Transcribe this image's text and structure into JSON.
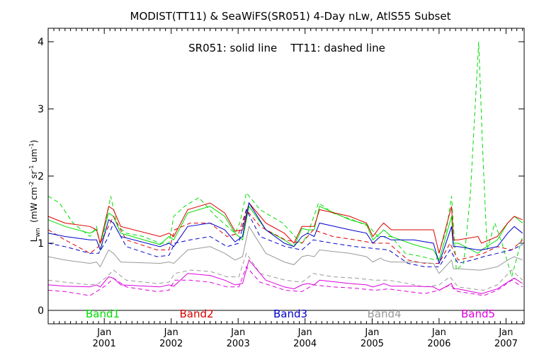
{
  "chart_data": {
    "type": "line",
    "title": "MODIST(TT11) & SeaWiFS(SR051) 4-Day nLw, AtlS55 Subset",
    "annotation": "SR051: solid line    TT11: dashed line",
    "xlabel": "",
    "ylabel": {
      "base": "L",
      "sub": "wn",
      "rest_1": "  (mW cm",
      "sup_1": "-2",
      "rest_2": " sr",
      "sup_2": "-1",
      "rest_3": " um",
      "sup_3": "-1",
      "rest_4": ")"
    },
    "x_axis": {
      "type": "date",
      "range": [
        "2000-03-01",
        "2007-04-10"
      ],
      "tick_month": "Jan",
      "tick_dates": [
        "2001-01-01",
        "2002-01-01",
        "2003-01-01",
        "2004-01-01",
        "2005-01-01",
        "2006-01-01",
        "2007-01-01"
      ],
      "tick_labels": [
        "2001",
        "2002",
        "2003",
        "2004",
        "2005",
        "2006",
        "2007"
      ]
    },
    "ylim": [
      -0.2,
      4.2
    ],
    "yticks": [
      0,
      1,
      2,
      3,
      4
    ],
    "grid": false,
    "zero_line": true,
    "legend": {
      "placement": "bottom-inside",
      "entries": [
        {
          "label": "Band1",
          "color": "#00dd00"
        },
        {
          "label": "Band2",
          "color": "#dd0000"
        },
        {
          "label": "Band3",
          "color": "#0000cc"
        },
        {
          "label": "Band4",
          "color": "#999999"
        },
        {
          "label": "Band5",
          "color": "#dd00dd"
        }
      ]
    },
    "series": [
      {
        "band": "Band1",
        "sensor": "SR051",
        "style": "solid",
        "color": "#00dd00",
        "x": [
          "2000-03-01",
          "2000-06-01",
          "2000-10-15",
          "2000-11-20",
          "2000-12-10",
          "2001-01-25",
          "2001-02-20",
          "2001-04-01",
          "2001-11-01",
          "2001-12-20",
          "2002-01-15",
          "2002-04-01",
          "2002-08-01",
          "2002-10-20",
          "2002-12-15",
          "2003-01-25",
          "2003-03-01",
          "2003-06-01",
          "2003-09-10",
          "2003-11-01",
          "2003-12-15",
          "2004-01-15",
          "2004-02-20",
          "2004-03-20",
          "2004-09-01",
          "2004-12-01",
          "2005-01-05",
          "2005-02-15",
          "2005-03-05",
          "2005-04-15",
          "2005-08-15",
          "2005-12-01",
          "2006-01-01",
          "2006-03-10",
          "2006-03-20",
          "2006-04-15",
          "2006-08-01",
          "2006-08-20",
          "2006-11-15",
          "2007-01-10",
          "2007-02-15",
          "2007-04-01"
        ],
        "y": [
          1.35,
          1.25,
          1.15,
          1.2,
          1.0,
          1.45,
          1.4,
          1.15,
          0.98,
          1.1,
          1.05,
          1.45,
          1.55,
          1.4,
          1.15,
          1.05,
          1.55,
          1.2,
          1.05,
          0.95,
          1.22,
          1.2,
          1.2,
          1.55,
          1.35,
          1.28,
          1.05,
          1.15,
          1.2,
          1.1,
          0.98,
          0.9,
          0.75,
          1.4,
          1.0,
          1.0,
          0.85,
          0.9,
          1.05,
          1.3,
          1.4,
          1.3
        ]
      },
      {
        "band": "Band1",
        "sensor": "TT11",
        "style": "dashed",
        "color": "#00dd00",
        "x": [
          "2000-03-01",
          "2000-05-01",
          "2000-07-15",
          "2000-10-15",
          "2000-11-20",
          "2000-12-15",
          "2001-01-05",
          "2001-02-05",
          "2001-03-15",
          "2001-05-01",
          "2001-08-01",
          "2001-11-01",
          "2001-12-20",
          "2002-01-15",
          "2002-03-15",
          "2002-06-01",
          "2002-09-01",
          "2002-12-15",
          "2003-01-10",
          "2003-02-15",
          "2003-05-01",
          "2003-09-01",
          "2003-12-10",
          "2004-01-10",
          "2004-03-15",
          "2004-06-01",
          "2004-09-15",
          "2004-12-15",
          "2005-02-01",
          "2005-04-15",
          "2005-07-01",
          "2005-10-01",
          "2005-12-15",
          "2006-01-05",
          "2006-02-10",
          "2006-03-10",
          "2006-04-05",
          "2006-05-15",
          "2006-06-20",
          "2006-08-05",
          "2006-08-25",
          "2006-09-20",
          "2006-11-01",
          "2006-12-10",
          "2007-02-01",
          "2007-04-01"
        ],
        "y": [
          1.7,
          1.6,
          1.3,
          1.1,
          1.25,
          0.9,
          1.25,
          1.7,
          1.25,
          1.15,
          1.1,
          1.0,
          1.0,
          1.4,
          1.55,
          1.68,
          1.4,
          1.15,
          1.3,
          1.75,
          1.5,
          1.3,
          1.0,
          1.1,
          1.6,
          1.45,
          1.35,
          1.25,
          1.1,
          1.1,
          0.85,
          0.8,
          0.75,
          0.9,
          1.2,
          1.7,
          0.6,
          0.7,
          1.7,
          4.0,
          2.5,
          0.9,
          1.3,
          1.0,
          0.5,
          1.1
        ]
      },
      {
        "band": "Band2",
        "sensor": "SR051",
        "style": "solid",
        "color": "#dd0000",
        "x": [
          "2000-03-01",
          "2000-06-01",
          "2000-10-15",
          "2000-11-20",
          "2000-12-10",
          "2001-01-25",
          "2001-02-20",
          "2001-04-01",
          "2001-11-01",
          "2001-12-20",
          "2002-01-15",
          "2002-04-01",
          "2002-08-01",
          "2002-10-20",
          "2002-12-15",
          "2003-01-25",
          "2003-03-01",
          "2003-06-01",
          "2003-09-10",
          "2003-11-01",
          "2003-12-15",
          "2004-01-15",
          "2004-02-20",
          "2004-03-20",
          "2004-09-01",
          "2004-12-01",
          "2005-01-05",
          "2005-02-15",
          "2005-03-05",
          "2005-04-15",
          "2005-08-15",
          "2005-12-01",
          "2006-01-01",
          "2006-03-10",
          "2006-03-20",
          "2006-04-15",
          "2006-08-01",
          "2006-08-20",
          "2006-11-15",
          "2007-01-10",
          "2007-02-15",
          "2007-04-01"
        ],
        "y": [
          1.4,
          1.3,
          1.25,
          1.2,
          1.0,
          1.55,
          1.5,
          1.25,
          1.1,
          1.15,
          1.1,
          1.5,
          1.6,
          1.45,
          1.18,
          1.2,
          1.6,
          1.3,
          1.15,
          1.0,
          1.25,
          1.25,
          1.25,
          1.5,
          1.4,
          1.3,
          1.1,
          1.25,
          1.3,
          1.2,
          1.2,
          1.2,
          0.85,
          1.55,
          1.05,
          1.05,
          1.1,
          1.0,
          1.1,
          1.3,
          1.4,
          1.35
        ]
      },
      {
        "band": "Band2",
        "sensor": "TT11",
        "style": "dashed",
        "color": "#dd0000",
        "x": [
          "2000-03-01",
          "2000-06-01",
          "2000-10-15",
          "2000-12-01",
          "2001-01-15",
          "2001-02-20",
          "2001-05-01",
          "2001-10-15",
          "2001-12-20",
          "2002-01-20",
          "2002-04-15",
          "2002-08-01",
          "2002-11-01",
          "2003-01-05",
          "2003-02-15",
          "2003-05-01",
          "2003-09-15",
          "2003-12-15",
          "2004-02-15",
          "2004-06-01",
          "2004-10-01",
          "2005-01-15",
          "2005-04-01",
          "2005-07-15",
          "2005-10-15",
          "2006-01-01",
          "2006-03-01",
          "2006-04-15",
          "2006-07-01",
          "2006-09-01",
          "2006-11-15",
          "2007-02-01",
          "2007-04-01"
        ],
        "y": [
          1.2,
          1.05,
          0.85,
          0.95,
          1.2,
          1.4,
          1.05,
          0.9,
          0.9,
          1.2,
          1.3,
          1.3,
          1.1,
          1.15,
          1.5,
          1.25,
          1.05,
          1.0,
          1.2,
          1.1,
          1.05,
          1.0,
          1.0,
          0.75,
          0.7,
          0.7,
          1.0,
          0.75,
          0.8,
          0.85,
          0.95,
          0.9,
          1.05
        ]
      },
      {
        "band": "Band3",
        "sensor": "SR051",
        "style": "solid",
        "color": "#0000cc",
        "x": [
          "2000-03-01",
          "2000-06-01",
          "2000-10-15",
          "2000-11-20",
          "2000-12-10",
          "2001-01-25",
          "2001-02-20",
          "2001-04-01",
          "2001-11-01",
          "2001-12-20",
          "2002-01-15",
          "2002-04-01",
          "2002-08-01",
          "2002-10-20",
          "2002-12-15",
          "2003-01-25",
          "2003-03-01",
          "2003-06-01",
          "2003-09-10",
          "2003-11-01",
          "2003-12-15",
          "2004-01-15",
          "2004-02-20",
          "2004-03-20",
          "2004-09-01",
          "2004-12-01",
          "2005-01-05",
          "2005-02-15",
          "2005-03-05",
          "2005-04-15",
          "2005-08-15",
          "2005-12-01",
          "2006-01-01",
          "2006-03-10",
          "2006-03-20",
          "2006-04-15",
          "2006-08-01",
          "2006-08-20",
          "2006-11-15",
          "2007-01-10",
          "2007-02-15",
          "2007-04-01"
        ],
        "y": [
          1.15,
          1.1,
          1.05,
          1.05,
          0.9,
          1.35,
          1.3,
          1.1,
          0.95,
          1.0,
          0.95,
          1.25,
          1.3,
          1.2,
          1.02,
          1.1,
          1.6,
          1.2,
          1.0,
          0.95,
          1.1,
          1.15,
          1.1,
          1.3,
          1.2,
          1.15,
          1.0,
          1.1,
          1.1,
          1.05,
          1.05,
          1.0,
          0.7,
          1.25,
          0.95,
          0.95,
          0.9,
          0.9,
          0.95,
          1.15,
          1.25,
          1.15
        ]
      },
      {
        "band": "Band3",
        "sensor": "TT11",
        "style": "dashed",
        "color": "#0000cc",
        "x": [
          "2000-03-01",
          "2000-06-01",
          "2000-10-15",
          "2000-12-01",
          "2001-01-15",
          "2001-02-20",
          "2001-05-01",
          "2001-10-15",
          "2001-12-20",
          "2002-01-20",
          "2002-04-15",
          "2002-08-01",
          "2002-11-01",
          "2003-01-05",
          "2003-02-15",
          "2003-05-01",
          "2003-09-15",
          "2003-12-15",
          "2004-02-15",
          "2004-06-01",
          "2004-10-01",
          "2005-01-15",
          "2005-04-01",
          "2005-07-15",
          "2005-10-15",
          "2006-01-01",
          "2006-03-01",
          "2006-04-15",
          "2006-07-01",
          "2006-09-01",
          "2006-11-15",
          "2007-02-01",
          "2007-04-01"
        ],
        "y": [
          1.0,
          0.95,
          0.85,
          0.85,
          1.05,
          1.3,
          0.95,
          0.8,
          0.82,
          1.0,
          1.05,
          1.1,
          0.95,
          1.0,
          1.5,
          1.1,
          0.95,
          0.9,
          1.05,
          1.0,
          0.95,
          0.92,
          0.9,
          0.7,
          0.65,
          0.65,
          0.9,
          0.7,
          0.75,
          0.8,
          0.85,
          0.9,
          0.98
        ]
      },
      {
        "band": "Band4",
        "sensor": "SR051",
        "style": "solid",
        "color": "#999999",
        "x": [
          "2000-03-01",
          "2000-06-01",
          "2000-10-15",
          "2000-11-20",
          "2000-12-10",
          "2001-01-25",
          "2001-02-20",
          "2001-04-01",
          "2001-11-01",
          "2001-12-20",
          "2002-01-15",
          "2002-04-01",
          "2002-08-01",
          "2002-10-20",
          "2002-12-15",
          "2003-01-25",
          "2003-03-01",
          "2003-06-01",
          "2003-09-10",
          "2003-11-01",
          "2003-12-15",
          "2004-01-15",
          "2004-02-20",
          "2004-03-20",
          "2004-09-01",
          "2004-12-01",
          "2005-01-05",
          "2005-02-15",
          "2005-03-05",
          "2005-04-15",
          "2005-08-15",
          "2005-12-01",
          "2006-01-01",
          "2006-03-10",
          "2006-03-20",
          "2006-04-15",
          "2006-08-01",
          "2006-08-20",
          "2006-11-15",
          "2007-01-10",
          "2007-02-15",
          "2007-04-01"
        ],
        "y": [
          0.8,
          0.75,
          0.7,
          0.72,
          0.65,
          0.9,
          0.85,
          0.72,
          0.7,
          0.72,
          0.7,
          0.9,
          0.95,
          0.85,
          0.75,
          0.8,
          1.25,
          0.85,
          0.72,
          0.68,
          0.8,
          0.82,
          0.8,
          0.9,
          0.85,
          0.8,
          0.72,
          0.78,
          0.75,
          0.72,
          0.72,
          0.7,
          0.55,
          0.75,
          0.62,
          0.62,
          0.6,
          0.6,
          0.65,
          0.75,
          0.8,
          0.75
        ]
      },
      {
        "band": "Band4",
        "sensor": "TT11",
        "style": "dashed",
        "color": "#999999",
        "x": [
          "2000-03-01",
          "2000-06-01",
          "2000-10-15",
          "2000-12-01",
          "2001-01-15",
          "2001-02-20",
          "2001-05-01",
          "2001-10-15",
          "2001-12-20",
          "2002-01-20",
          "2002-04-15",
          "2002-08-01",
          "2002-11-01",
          "2003-01-05",
          "2003-02-15",
          "2003-05-01",
          "2003-09-15",
          "2003-12-15",
          "2004-02-15",
          "2004-06-01",
          "2004-10-01",
          "2005-01-15",
          "2005-04-01",
          "2005-07-15",
          "2005-10-15",
          "2006-01-01",
          "2006-03-01",
          "2006-04-15",
          "2006-07-01",
          "2006-09-01",
          "2006-11-15",
          "2007-02-01",
          "2007-04-01"
        ],
        "y": [
          0.45,
          0.42,
          0.38,
          0.4,
          0.5,
          0.6,
          0.45,
          0.4,
          0.42,
          0.55,
          0.6,
          0.58,
          0.5,
          0.5,
          0.85,
          0.55,
          0.45,
          0.42,
          0.55,
          0.5,
          0.48,
          0.45,
          0.45,
          0.4,
          0.35,
          0.38,
          0.5,
          0.35,
          0.32,
          0.3,
          0.38,
          0.6,
          0.45
        ]
      },
      {
        "band": "Band5",
        "sensor": "SR051",
        "style": "solid",
        "color": "#dd00dd",
        "x": [
          "2000-03-01",
          "2000-06-01",
          "2000-10-15",
          "2000-11-20",
          "2000-12-10",
          "2001-01-25",
          "2001-02-20",
          "2001-04-01",
          "2001-11-01",
          "2001-12-20",
          "2002-01-15",
          "2002-04-01",
          "2002-08-01",
          "2002-10-20",
          "2002-12-15",
          "2003-01-25",
          "2003-03-01",
          "2003-06-01",
          "2003-09-10",
          "2003-11-01",
          "2003-12-15",
          "2004-01-15",
          "2004-02-20",
          "2004-03-20",
          "2004-09-01",
          "2004-12-01",
          "2005-01-05",
          "2005-02-15",
          "2005-03-05",
          "2005-04-15",
          "2005-08-15",
          "2005-12-01",
          "2006-01-01",
          "2006-03-10",
          "2006-03-20",
          "2006-04-15",
          "2006-08-01",
          "2006-08-20",
          "2006-11-15",
          "2007-01-10",
          "2007-02-15",
          "2007-04-01"
        ],
        "y": [
          0.38,
          0.36,
          0.35,
          0.38,
          0.35,
          0.5,
          0.48,
          0.38,
          0.35,
          0.38,
          0.36,
          0.55,
          0.52,
          0.45,
          0.38,
          0.4,
          0.75,
          0.45,
          0.35,
          0.32,
          0.38,
          0.4,
          0.38,
          0.45,
          0.4,
          0.38,
          0.35,
          0.38,
          0.4,
          0.36,
          0.36,
          0.35,
          0.3,
          0.4,
          0.32,
          0.32,
          0.26,
          0.25,
          0.32,
          0.42,
          0.48,
          0.4
        ]
      },
      {
        "band": "Band5",
        "sensor": "TT11",
        "style": "dashed",
        "color": "#dd00dd",
        "x": [
          "2000-03-01",
          "2000-06-01",
          "2000-10-15",
          "2000-12-01",
          "2001-01-15",
          "2001-02-20",
          "2001-05-01",
          "2001-10-15",
          "2001-12-20",
          "2002-01-20",
          "2002-04-15",
          "2002-08-01",
          "2002-11-01",
          "2003-01-05",
          "2003-02-15",
          "2003-05-01",
          "2003-09-15",
          "2003-12-15",
          "2004-02-15",
          "2004-06-01",
          "2004-10-01",
          "2005-01-15",
          "2005-04-01",
          "2005-07-15",
          "2005-10-15",
          "2006-01-01",
          "2006-03-01",
          "2006-04-15",
          "2006-07-01",
          "2006-09-01",
          "2006-11-15",
          "2007-02-01",
          "2007-04-01"
        ],
        "y": [
          0.3,
          0.28,
          0.22,
          0.3,
          0.38,
          0.48,
          0.35,
          0.28,
          0.3,
          0.45,
          0.45,
          0.42,
          0.35,
          0.35,
          0.65,
          0.42,
          0.3,
          0.28,
          0.38,
          0.35,
          0.33,
          0.3,
          0.32,
          0.28,
          0.25,
          0.3,
          0.38,
          0.28,
          0.25,
          0.22,
          0.3,
          0.45,
          0.35
        ]
      }
    ]
  }
}
